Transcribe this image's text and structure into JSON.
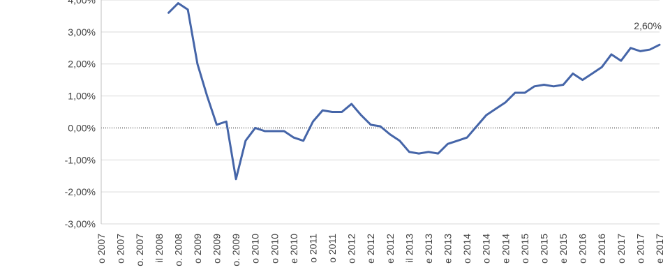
{
  "chart_data": {
    "type": "line",
    "categories": [
      "o 2007",
      null,
      "o 2007",
      null,
      "o. 2007",
      null,
      "il 2008",
      null,
      "o. 2008",
      null,
      "o 2009",
      null,
      "o 2009",
      null,
      "o. 2009",
      null,
      "o 2010",
      null,
      "o 2010",
      null,
      "e 2010",
      null,
      "o 2011",
      null,
      "o 2011",
      null,
      "o 2012",
      null,
      "e 2012",
      null,
      "e 2012",
      null,
      "il 2013",
      null,
      "e 2013",
      null,
      "e 2013",
      null,
      "o 2014",
      null,
      "o 2014",
      null,
      "e 2014",
      null,
      "o 2015",
      null,
      "o 2015",
      null,
      "e 2015",
      null,
      "o 2016",
      null,
      "o 2016",
      null,
      "o 2017",
      null,
      "o 2017",
      null,
      "e 2017"
    ],
    "series": [
      {
        "color": "#4565a8",
        "values": [
          null,
          null,
          null,
          null,
          null,
          null,
          null,
          3.6,
          3.9,
          3.7,
          2.0,
          1.0,
          0.1,
          0.2,
          -1.6,
          -0.4,
          0.0,
          -0.1,
          -0.1,
          -0.1,
          -0.3,
          -0.4,
          0.2,
          0.55,
          0.5,
          0.5,
          0.75,
          0.4,
          0.1,
          0.05,
          -0.2,
          -0.4,
          -0.75,
          -0.8,
          -0.75,
          -0.8,
          -0.5,
          -0.4,
          -0.3,
          0.05,
          0.4,
          0.6,
          0.8,
          1.1,
          1.1,
          1.3,
          1.35,
          1.3,
          1.35,
          1.7,
          1.5,
          1.7,
          1.9,
          2.3,
          2.1,
          2.5,
          2.4,
          2.45,
          2.6
        ],
        "value_labels": [
          null,
          null,
          null,
          null,
          null,
          null,
          null,
          null,
          null,
          null,
          null,
          null,
          null,
          null,
          null,
          null,
          null,
          null,
          null,
          null,
          null,
          null,
          null,
          null,
          null,
          null,
          null,
          null,
          null,
          null,
          null,
          null,
          null,
          null,
          null,
          null,
          null,
          null,
          null,
          null,
          null,
          null,
          null,
          null,
          null,
          null,
          null,
          null,
          null,
          null,
          null,
          null,
          null,
          null,
          null,
          null,
          null,
          null,
          "2,60%"
        ]
      }
    ],
    "ylim": [
      -3,
      4
    ],
    "yticks": [
      {
        "value": -3,
        "label": "-3,00%"
      },
      {
        "value": -2,
        "label": "-2,00%"
      },
      {
        "value": -1,
        "label": "-1,00%"
      },
      {
        "value": 0,
        "label": "0,00%"
      },
      {
        "value": 1,
        "label": "1,00%"
      },
      {
        "value": 2,
        "label": "2,00%"
      },
      {
        "value": 3,
        "label": "3,00%"
      },
      {
        "value": 4,
        "label": "4,00%"
      }
    ],
    "grid": true
  }
}
